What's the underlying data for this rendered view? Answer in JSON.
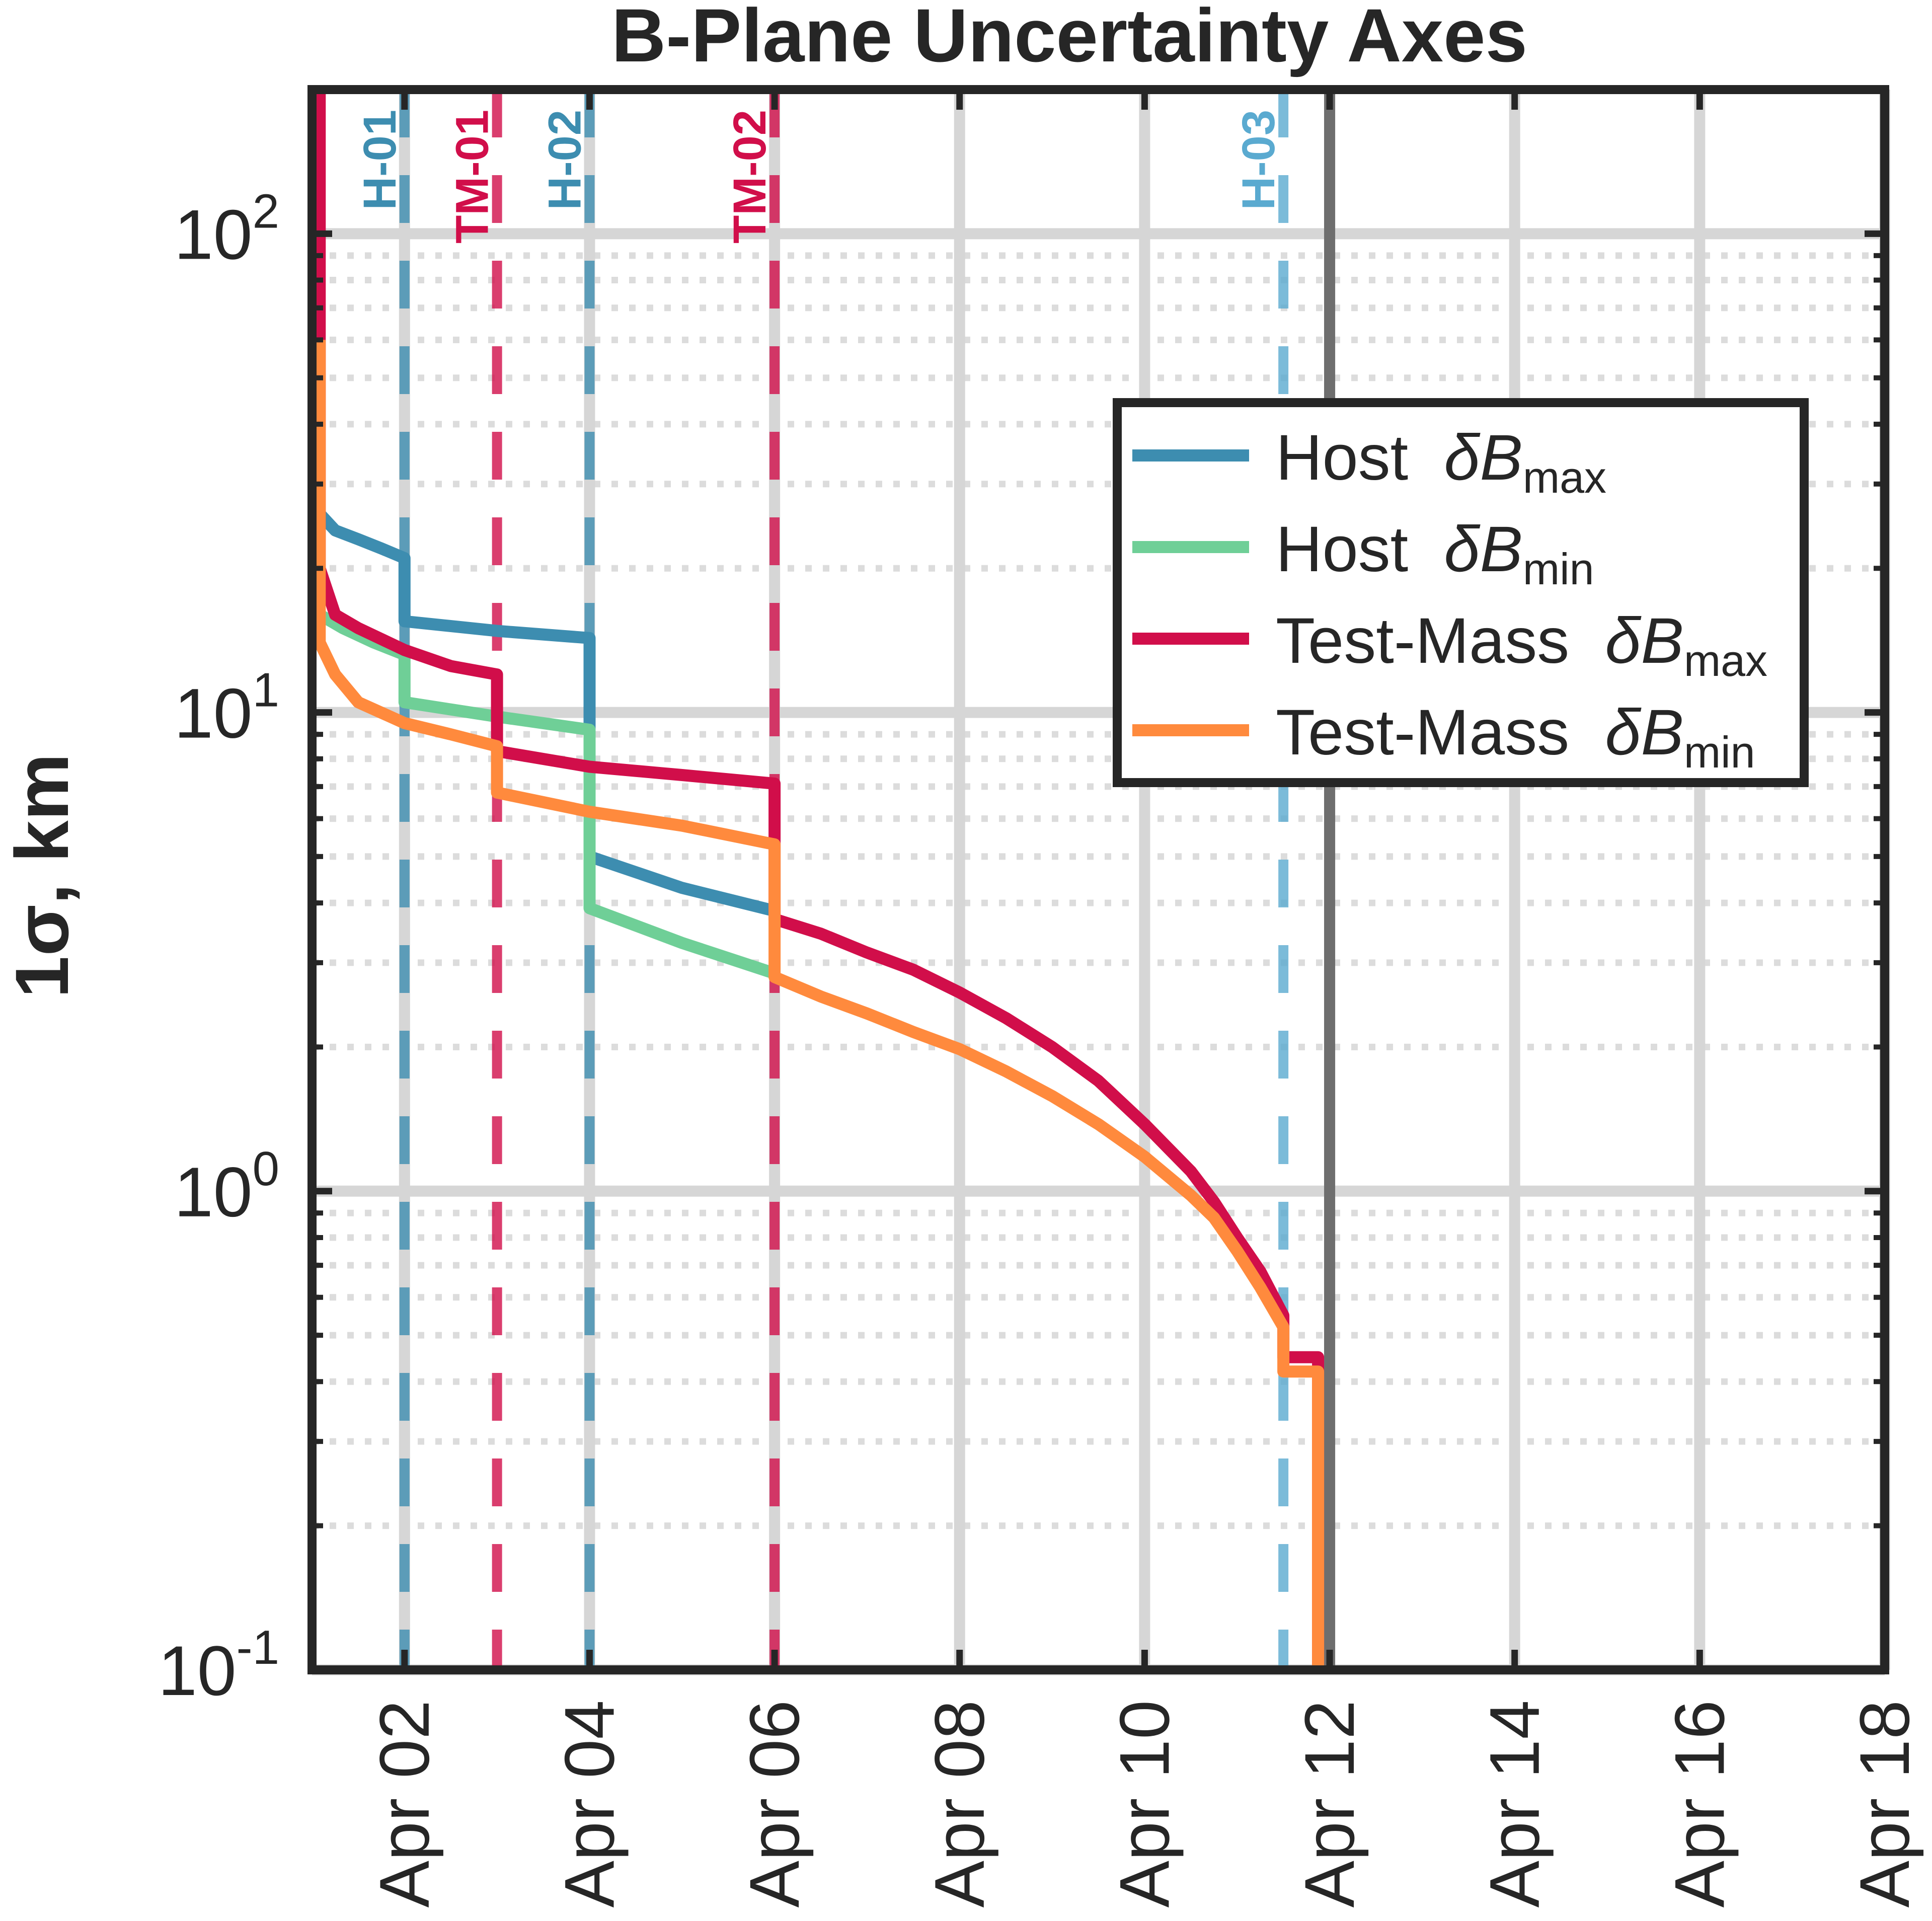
{
  "chart_data": {
    "type": "line",
    "title": "B-Plane Uncertainty Axes",
    "ylabel": "1σ,  km",
    "xlabel": "",
    "x_ticks": [
      "Apr 02",
      "Apr 04",
      "Apr 06",
      "Apr 08",
      "Apr 10",
      "Apr 12",
      "Apr 14",
      "Apr 16",
      "Apr 18"
    ],
    "xlim": [
      "2026-04-01T00:00",
      "2026-04-18T00:00"
    ],
    "ylim": [
      0.1,
      200
    ],
    "y_scale": "log",
    "y_ticks": [
      {
        "base": "10",
        "exp": "-1"
      },
      {
        "base": "10",
        "exp": "0"
      },
      {
        "base": "10",
        "exp": "1"
      },
      {
        "base": "10",
        "exp": "2"
      }
    ],
    "grid": true,
    "legend_position": "top-right",
    "legend": {
      "entries": [
        {
          "name": "Host",
          "symbol": "δB",
          "sub": "max",
          "color": "#3d8db0"
        },
        {
          "name": "Host",
          "symbol": "δB",
          "sub": "min",
          "color": "#6fcf97"
        },
        {
          "name": "Test-Mass",
          "symbol": "δB",
          "sub": "max",
          "color": "#d10e4a"
        },
        {
          "name": "Test-Mass",
          "symbol": "δB",
          "sub": "min",
          "color": "#ff8a3d"
        }
      ]
    },
    "events": [
      {
        "label": "H-01",
        "date": "2026-04-02T00:00",
        "color": "#3d8db0"
      },
      {
        "label": "TM-01",
        "date": "2026-04-03T00:00",
        "color": "#d10e4a"
      },
      {
        "label": "H-02",
        "date": "2026-04-04T00:00",
        "color": "#3d8db0"
      },
      {
        "label": "TM-02",
        "date": "2026-04-06T00:00",
        "color": "#d10e4a"
      },
      {
        "label": "H-03",
        "date": "2026-04-11T12:00",
        "color": "#5aaad0"
      }
    ],
    "end_line_date": "2026-04-12T00:00",
    "series": [
      {
        "name": "Host δBmax",
        "color": "#3d8db0",
        "points": [
          [
            "2026-04-01T02:00",
            26
          ],
          [
            "2026-04-01T06:00",
            24
          ],
          [
            "2026-04-01T12:00",
            23
          ],
          [
            "2026-04-01T18:00",
            22
          ],
          [
            "2026-04-02T00:00",
            21
          ],
          [
            "2026-04-02T00:00",
            15.5
          ],
          [
            "2026-04-03T00:00",
            14.8
          ],
          [
            "2026-04-04T00:00",
            14.3
          ],
          [
            "2026-04-04T00:00",
            5.0
          ],
          [
            "2026-04-05T00:00",
            4.3
          ],
          [
            "2026-04-06T00:00",
            3.85
          ]
        ]
      },
      {
        "name": "Host δBmin",
        "color": "#6fcf97",
        "points": [
          [
            "2026-04-01T02:00",
            16
          ],
          [
            "2026-04-01T08:00",
            15
          ],
          [
            "2026-04-01T16:00",
            14
          ],
          [
            "2026-04-02T00:00",
            13.2
          ],
          [
            "2026-04-02T00:00",
            10.5
          ],
          [
            "2026-04-03T00:00",
            9.8
          ],
          [
            "2026-04-04T00:00",
            9.2
          ],
          [
            "2026-04-04T00:00",
            3.9
          ],
          [
            "2026-04-05T00:00",
            3.3
          ],
          [
            "2026-04-06T00:00",
            2.85
          ]
        ]
      },
      {
        "name": "Test-Mass δBmax",
        "color": "#d10e4a",
        "points": [
          [
            "2026-04-01T02:00",
            200
          ],
          [
            "2026-04-01T02:00",
            20
          ],
          [
            "2026-04-01T06:00",
            16
          ],
          [
            "2026-04-01T12:00",
            15
          ],
          [
            "2026-04-02T00:00",
            13.5
          ],
          [
            "2026-04-02T12:00",
            12.5
          ],
          [
            "2026-04-03T00:00",
            12
          ],
          [
            "2026-04-03T00:00",
            8.3
          ],
          [
            "2026-04-04T00:00",
            7.7
          ],
          [
            "2026-04-05T00:00",
            7.4
          ],
          [
            "2026-04-06T00:00",
            7.1
          ],
          [
            "2026-04-06T00:00",
            3.7
          ],
          [
            "2026-04-06T12:00",
            3.45
          ],
          [
            "2026-04-07T00:00",
            3.15
          ],
          [
            "2026-04-07T12:00",
            2.9
          ],
          [
            "2026-04-08T00:00",
            2.6
          ],
          [
            "2026-04-08T12:00",
            2.3
          ],
          [
            "2026-04-09T00:00",
            2.0
          ],
          [
            "2026-04-09T12:00",
            1.7
          ],
          [
            "2026-04-10T00:00",
            1.38
          ],
          [
            "2026-04-10T12:00",
            1.1
          ],
          [
            "2026-04-10T18:00",
            0.95
          ],
          [
            "2026-04-11T00:00",
            0.8
          ],
          [
            "2026-04-11T06:00",
            0.68
          ],
          [
            "2026-04-11T12:00",
            0.55
          ],
          [
            "2026-04-11T12:00",
            0.45
          ],
          [
            "2026-04-11T21:00",
            0.45
          ],
          [
            "2026-04-11T21:00",
            0.1
          ]
        ]
      },
      {
        "name": "Test-Mass δBmin",
        "color": "#ff8a3d",
        "points": [
          [
            "2026-04-01T02:00",
            60
          ],
          [
            "2026-04-01T02:00",
            14
          ],
          [
            "2026-04-01T06:00",
            12
          ],
          [
            "2026-04-01T12:00",
            10.5
          ],
          [
            "2026-04-02T00:00",
            9.5
          ],
          [
            "2026-04-02T12:00",
            9.0
          ],
          [
            "2026-04-03T00:00",
            8.5
          ],
          [
            "2026-04-03T00:00",
            6.8
          ],
          [
            "2026-04-04T00:00",
            6.2
          ],
          [
            "2026-04-05T00:00",
            5.8
          ],
          [
            "2026-04-06T00:00",
            5.3
          ],
          [
            "2026-04-06T00:00",
            2.8
          ],
          [
            "2026-04-06T12:00",
            2.55
          ],
          [
            "2026-04-07T00:00",
            2.35
          ],
          [
            "2026-04-07T12:00",
            2.15
          ],
          [
            "2026-04-08T00:00",
            1.98
          ],
          [
            "2026-04-08T12:00",
            1.78
          ],
          [
            "2026-04-09T00:00",
            1.58
          ],
          [
            "2026-04-09T12:00",
            1.38
          ],
          [
            "2026-04-10T00:00",
            1.18
          ],
          [
            "2026-04-10T12:00",
            0.98
          ],
          [
            "2026-04-10T18:00",
            0.88
          ],
          [
            "2026-04-11T00:00",
            0.75
          ],
          [
            "2026-04-11T06:00",
            0.63
          ],
          [
            "2026-04-11T12:00",
            0.52
          ],
          [
            "2026-04-11T12:00",
            0.42
          ],
          [
            "2026-04-11T21:00",
            0.42
          ],
          [
            "2026-04-11T21:00",
            0.1
          ]
        ]
      }
    ]
  }
}
